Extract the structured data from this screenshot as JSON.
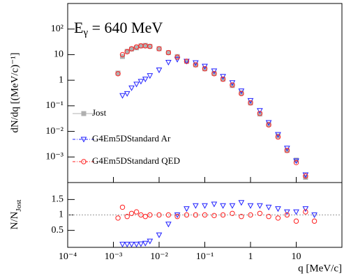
{
  "chart_data": [
    {
      "type": "scatter",
      "annotation": {
        "base": "E",
        "sub": "γ",
        "rest": " = 640 MeV"
      },
      "ylabel": "dN/dq [(MeV/c)⁻¹]",
      "log_x": true,
      "log_y": true,
      "x": [
        0.00126,
        0.00158,
        0.002,
        0.0025,
        0.0032,
        0.004,
        0.005,
        0.0063,
        0.01,
        0.016,
        0.025,
        0.04,
        0.063,
        0.1,
        0.16,
        0.25,
        0.4,
        0.63,
        1,
        1.6,
        2.5,
        4,
        6.3,
        10,
        16,
        25
      ],
      "xlim": [
        0.0001,
        100
      ],
      "xticks": [
        0.0001,
        0.001,
        0.01,
        0.1,
        1,
        10
      ],
      "ylim": [
        0.0001,
        1000
      ],
      "yticks": [
        {
          "value": 0.001,
          "label": "10⁻³"
        },
        {
          "value": 0.01,
          "label": "10⁻²"
        },
        {
          "value": 0.1,
          "label": "10⁻¹"
        },
        1,
        10,
        {
          "value": 100,
          "label": "10²"
        }
      ],
      "legend": "left",
      "series": [
        {
          "name": "Jost",
          "color": "#b0b0b0",
          "marker": "square",
          "values": [
            1.9,
            8.5,
            13.5,
            16.5,
            18.5,
            22,
            23,
            21,
            17,
            12,
            8.4,
            5.5,
            4,
            2.8,
            1.85,
            1.1,
            0.62,
            0.32,
            0.13,
            0.048,
            0.019,
            0.0066,
            0.0018,
            0.00075,
            0.00016,
            null
          ]
        },
        {
          "name": "G4Em5DStandard Ar",
          "color": "#2020ff",
          "marker": "triangle-down",
          "values": [
            null,
            0.25,
            0.3,
            0.5,
            0.7,
            0.9,
            1.1,
            1.5,
            2.5,
            5,
            6.5,
            5.5,
            4.8,
            3.5,
            2.3,
            1.4,
            0.8,
            0.38,
            0.16,
            0.065,
            0.022,
            0.0075,
            0.0022,
            0.0007,
            0.0002,
            null
          ]
        },
        {
          "name": "G4Em5DStandard QED",
          "color": "#ff2020",
          "marker": "circle",
          "values": [
            1.8,
            10,
            13,
            17,
            20,
            22,
            22,
            21,
            17,
            12,
            8,
            5.5,
            4,
            2.8,
            1.8,
            1.1,
            0.65,
            0.3,
            0.13,
            0.05,
            0.018,
            0.006,
            0.0018,
            0.0006,
            0.00018,
            null
          ]
        }
      ]
    },
    {
      "type": "scatter",
      "xlabel": "q [MeV/c]",
      "ylabel": {
        "base": "N/N",
        "sub": "Jost"
      },
      "log_x": true,
      "x": [
        0.00126,
        0.00158,
        0.002,
        0.0025,
        0.0032,
        0.004,
        0.005,
        0.0063,
        0.01,
        0.016,
        0.025,
        0.04,
        0.063,
        0.1,
        0.16,
        0.25,
        0.4,
        0.63,
        1,
        1.6,
        2.5,
        4,
        6.3,
        10,
        16,
        25
      ],
      "xlim": [
        0.0001,
        100
      ],
      "xticks": [
        {
          "value": 0.0001,
          "label": "10⁻⁴"
        },
        {
          "value": 0.001,
          "label": "10⁻³"
        },
        {
          "value": 0.01,
          "label": "10⁻²"
        },
        {
          "value": 0.1,
          "label": "10⁻¹"
        },
        1,
        10
      ],
      "ylim": [
        -0.05,
        2.05
      ],
      "yticks": [
        0.5,
        1,
        1.5
      ],
      "reference_line": 1,
      "series": [
        {
          "color": "#2020ff",
          "marker": "triangle-down",
          "values": [
            null,
            0.05,
            0.05,
            0.05,
            0.05,
            0.06,
            0.08,
            0.15,
            0.35,
            0.7,
            1.0,
            1.2,
            1.3,
            1.3,
            1.35,
            1.3,
            1.3,
            1.4,
            1.3,
            1.3,
            1.25,
            1.2,
            1.1,
            1.1,
            1.2,
            1.0
          ]
        },
        {
          "color": "#ff2020",
          "marker": "circle",
          "values": [
            0.9,
            1.25,
            0.95,
            1.05,
            1.1,
            1.0,
            0.95,
            1.0,
            1.0,
            1.0,
            0.95,
            1.0,
            1.0,
            1.0,
            0.98,
            1.0,
            1.05,
            0.95,
            1.0,
            1.05,
            0.95,
            0.9,
            1.0,
            0.8,
            1.1,
            0.8
          ]
        }
      ]
    }
  ]
}
